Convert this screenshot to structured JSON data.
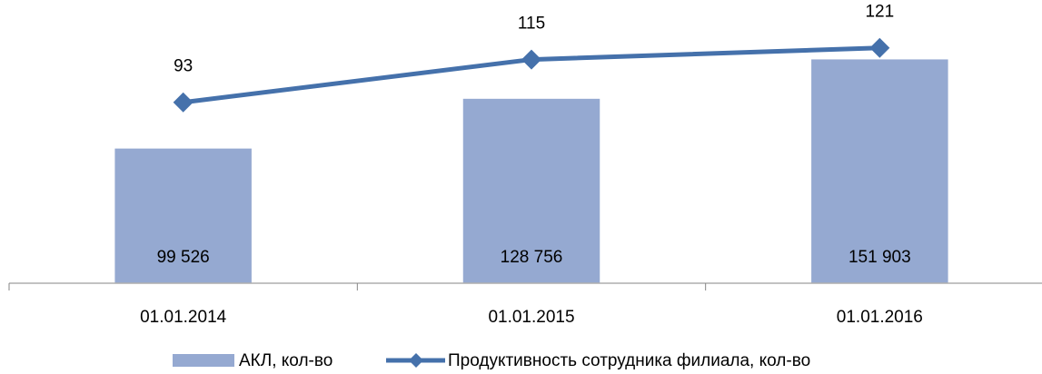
{
  "chart_data": {
    "type": "bar_line",
    "categories": [
      "01.01.2014",
      "01.01.2015",
      "01.01.2016"
    ],
    "series": [
      {
        "name": "АКЛ, кол-во",
        "type": "bar",
        "color": "#95a9d1",
        "values": [
          99526,
          128756,
          151903
        ],
        "value_labels": [
          "99 526",
          "128 756",
          "151 903"
        ]
      },
      {
        "name": "Продуктивность сотрудника филиала, кол-во",
        "type": "line",
        "axis": "y2",
        "color": "#4571ab",
        "values": [
          93,
          115,
          121
        ]
      }
    ],
    "ylim": [
      20000,
      180000
    ],
    "y2lim": [
      0,
      140
    ],
    "legend": "bottom"
  }
}
